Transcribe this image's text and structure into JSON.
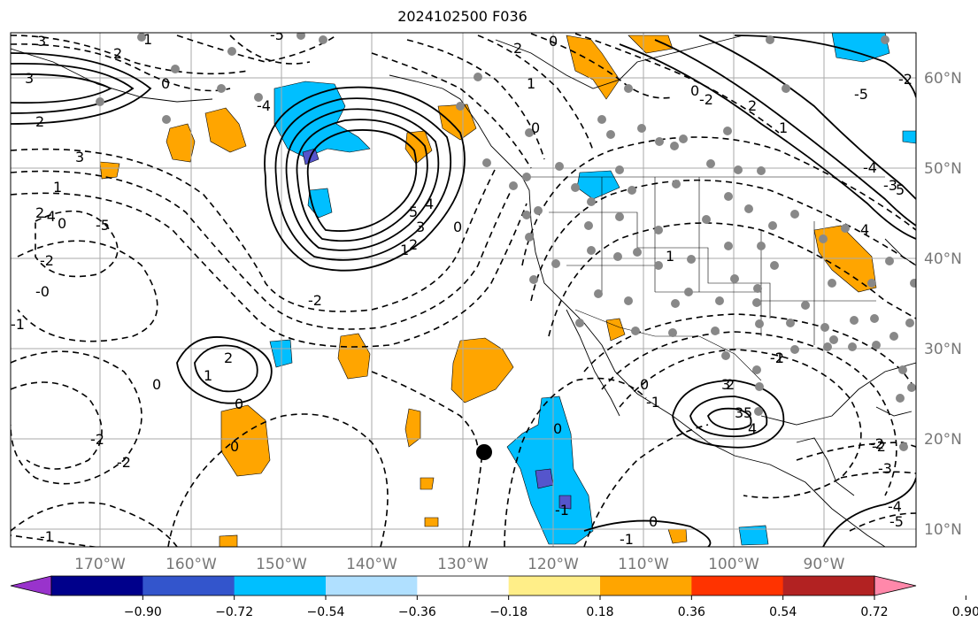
{
  "title": "2024102500 F036",
  "lon_labels": [
    "170°W",
    "160°W",
    "150°W",
    "140°W",
    "130°W",
    "120°W",
    "110°W",
    "100°W",
    "90°W"
  ],
  "lat_labels": [
    "60°N",
    "50°N",
    "40°N",
    "30°N",
    "20°N",
    "10°N"
  ],
  "colorbar": {
    "tick_labels": [
      "−0.90",
      "−0.72",
      "−0.54",
      "−0.36",
      "−0.18",
      "0.18",
      "0.36",
      "0.54",
      "0.72",
      "0.90"
    ],
    "colors": [
      "#9933cc",
      "#00008b",
      "#3355cc",
      "#00bfff",
      "#b0e0ff",
      "#ffffff",
      "#ffee88",
      "#ffa500",
      "#ff3300",
      "#b22222",
      "#ff88aa"
    ]
  },
  "contour_labels": [
    "3",
    "2",
    "1",
    "3",
    "2",
    "0",
    "3",
    "2",
    "1",
    "0",
    "-4",
    "-5",
    "-2",
    "-0",
    "-1",
    "0",
    "-2",
    "-2",
    "-1",
    "2",
    "1",
    "0",
    "5",
    "4",
    "3",
    "2",
    "1",
    "0",
    "-4",
    "-5",
    "2",
    "1",
    "0",
    "0",
    "-2",
    "2",
    "1",
    "0",
    "-1",
    "-5",
    "-4",
    "-3",
    "-2",
    "5",
    "4",
    "3",
    "3",
    "5",
    "4",
    "2",
    "1",
    "0",
    "-1",
    "-2",
    "-3",
    "-4",
    "-5",
    "0",
    "-1",
    "-2",
    "-1",
    "0",
    "-2",
    "-2",
    "0"
  ],
  "colors": {
    "grid": "#aaaaaa",
    "orange": "#ffa500",
    "blue": "#00bfff",
    "purple": "#5555cc",
    "axis_text": "#777777"
  }
}
